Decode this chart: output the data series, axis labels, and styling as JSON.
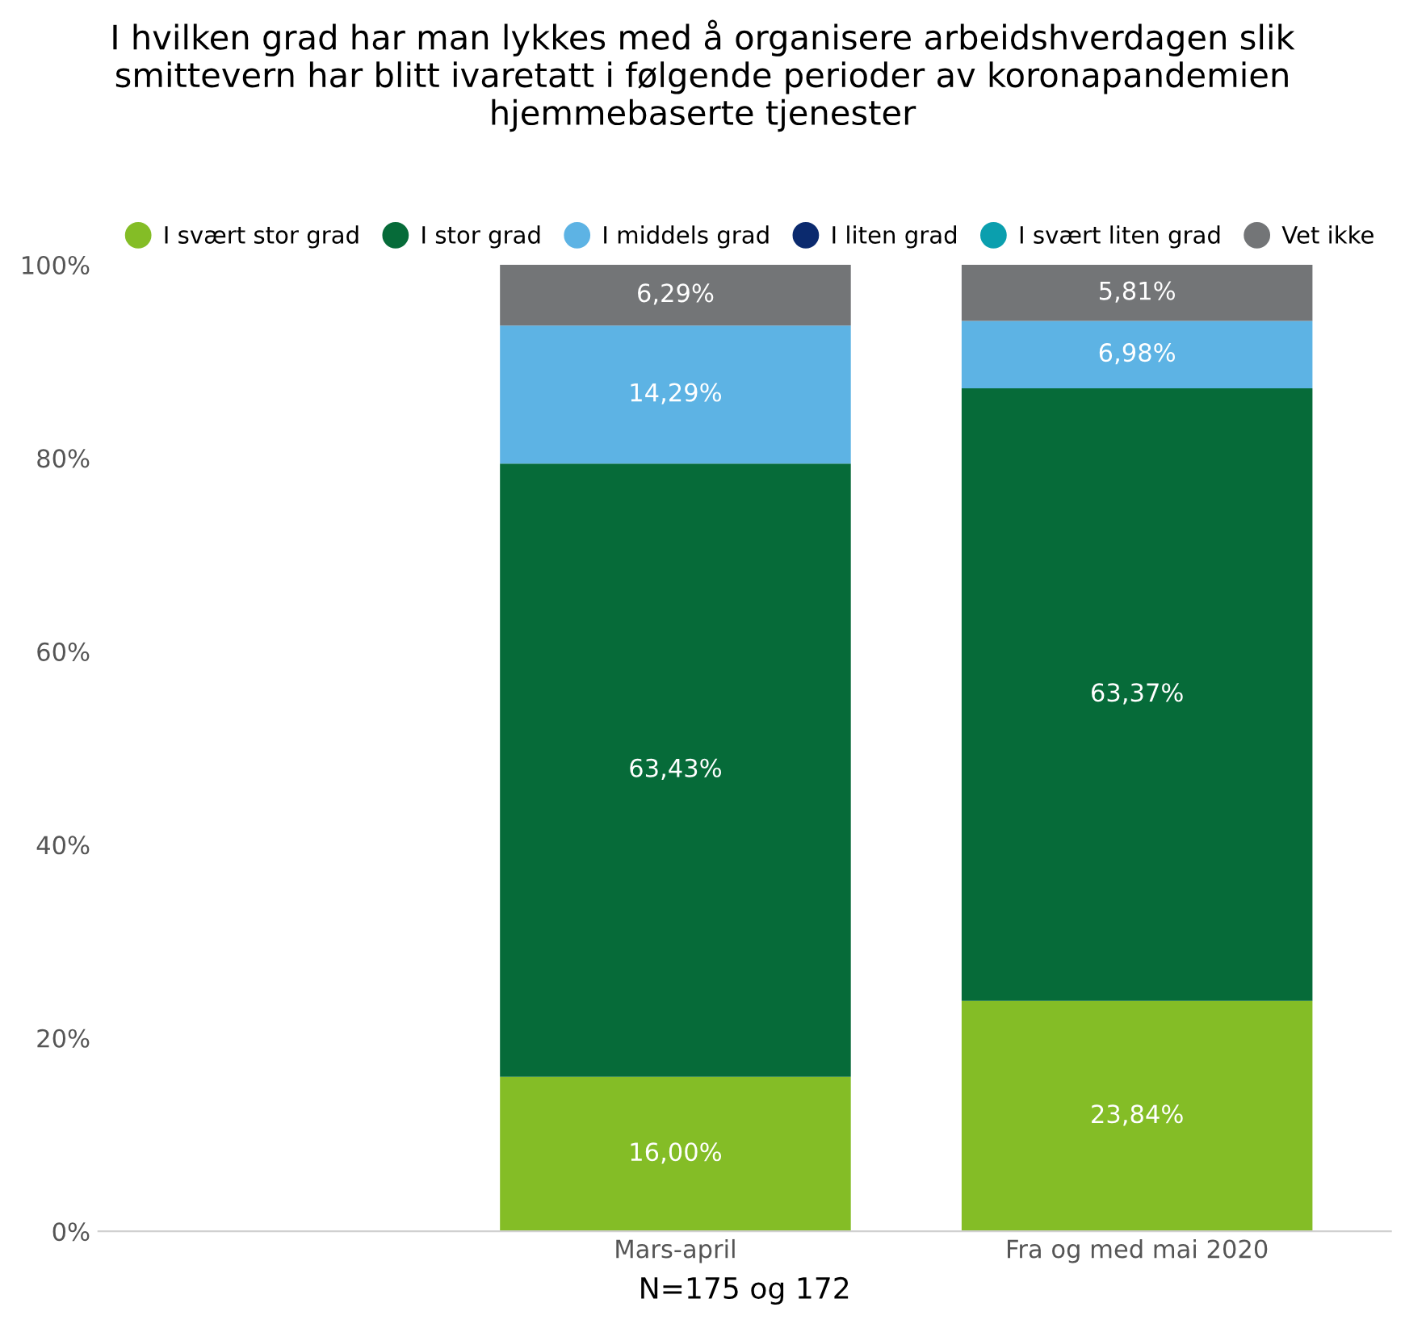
{
  "chart_data": {
    "type": "bar",
    "stacked": true,
    "title": "I hvilken grad har man lykkes med å organisere arbeidshverdagen slik\nsmittevern har blitt ivaretatt i følgende perioder av koronapandemien\nhjemmebaserte tjenester",
    "xlabel": "N=175 og 172",
    "categories": [
      "Mars-april",
      "Fra og med mai 2020"
    ],
    "series": [
      {
        "name": "I svært stor grad",
        "color": "#84bd26",
        "values": [
          16.0,
          23.84
        ],
        "value_labels": [
          "16,00%",
          "23,84%"
        ]
      },
      {
        "name": "I stor grad",
        "color": "#066b39",
        "values": [
          63.43,
          63.37
        ],
        "value_labels": [
          "63,43%",
          "63,37%"
        ]
      },
      {
        "name": "I middels grad",
        "color": "#5db3e4",
        "values": [
          14.29,
          6.98
        ],
        "value_labels": [
          "14,29%",
          "6,98%"
        ]
      },
      {
        "name": "I liten grad",
        "color": "#0b2a6e",
        "values": [
          0,
          0
        ],
        "value_labels": [
          null,
          null
        ]
      },
      {
        "name": "I svært liten grad",
        "color": "#0b9fae",
        "values": [
          0,
          0
        ],
        "value_labels": [
          null,
          null
        ]
      },
      {
        "name": "Vet ikke",
        "color": "#737577",
        "values": [
          6.29,
          5.81
        ],
        "value_labels": [
          "6,29%",
          "5,81%"
        ]
      }
    ],
    "ylim": [
      0,
      100
    ],
    "yticks": [
      {
        "value": 0,
        "label": "0%"
      },
      {
        "value": 20,
        "label": "20%"
      },
      {
        "value": 40,
        "label": "40%"
      },
      {
        "value": 60,
        "label": "60%"
      },
      {
        "value": 80,
        "label": "80%"
      },
      {
        "value": 100,
        "label": "100%"
      }
    ],
    "grid": false,
    "legend": "top"
  }
}
